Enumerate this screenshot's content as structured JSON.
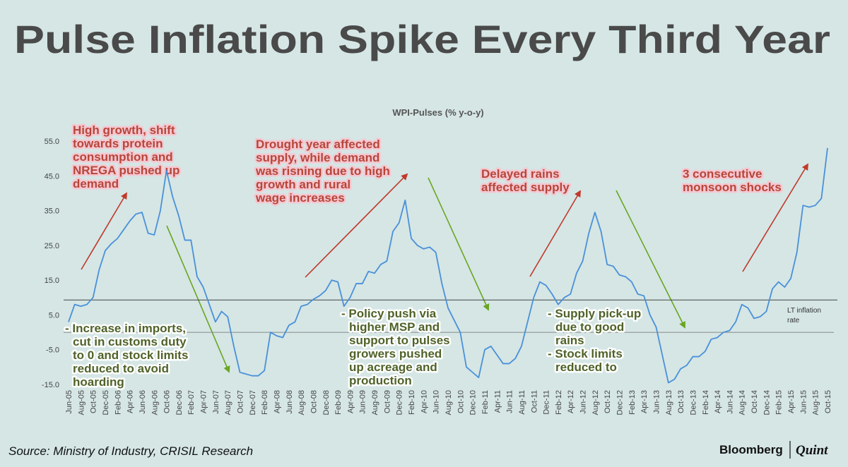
{
  "chart_data": {
    "type": "line",
    "title": "Pulse Inflation Spike Every Third Year",
    "subtitle": "WPI-Pulses (% y-o-y)",
    "categories": [
      "Jun-05",
      null,
      "Aug-05",
      null,
      "Oct-05",
      null,
      "Dec-05",
      null,
      "Feb-06",
      null,
      "Apr-06",
      null,
      "Jun-06",
      null,
      "Aug-06",
      null,
      "Oct-06",
      null,
      "Dec-06",
      null,
      "Feb-07",
      null,
      "Apr-07",
      null,
      "Jun-07",
      null,
      "Aug-07",
      null,
      "Oct-07",
      null,
      "Dec-07",
      null,
      "Feb-08",
      null,
      "Apr-08",
      null,
      "Jun-08",
      null,
      "Aug-08",
      null,
      "Oct-08",
      null,
      "Dec-08",
      null,
      "Feb-09",
      null,
      "Apr-09",
      null,
      "Jun-09",
      null,
      "Aug-09",
      null,
      "Oct-09",
      null,
      "Dec-09",
      null,
      "Feb-10",
      null,
      "Apr-10",
      null,
      "Jun-10",
      null,
      "Aug-10",
      null,
      "Oct-10",
      null,
      "Dec-10",
      null,
      "Feb-11",
      null,
      "Apr-11",
      null,
      "Jun-11",
      null,
      "Aug-11",
      null,
      "Oct-11",
      null,
      "Dec-11",
      null,
      "Feb-12",
      null,
      "Apr-12",
      null,
      "Jun-12",
      null,
      "Aug-12",
      null,
      "Oct-12",
      null,
      "Dec-12",
      null,
      "Feb-13",
      null,
      "Apr-13",
      null,
      "Jun-13",
      null,
      "Aug-13",
      null,
      "Oct-13",
      null,
      "Dec-13",
      null,
      "Feb-14",
      null,
      "Apr-14",
      null,
      "Jun-14",
      null,
      "Aug-14",
      null,
      "Oct-14",
      null,
      "Dec-14",
      null,
      "Feb-15",
      null,
      "Apr-15",
      null,
      "Jun-15",
      null,
      "Aug-15",
      null,
      "Oct-15"
    ],
    "values": [
      3,
      8,
      7.5,
      8,
      10,
      18,
      23.5,
      25.5,
      27,
      29.5,
      32,
      34,
      34.5,
      28.5,
      28,
      35,
      46.5,
      39,
      33.5,
      26.5,
      26.5,
      16,
      13,
      8,
      3,
      6,
      4.5,
      -4,
      -11.5,
      -12,
      -12.5,
      -12.5,
      -11,
      0,
      -1,
      -1.5,
      2,
      3,
      7.5,
      8,
      9.5,
      10.5,
      12,
      15,
      14.5,
      7.5,
      10,
      14,
      14,
      17.5,
      17,
      19.5,
      20.5,
      29,
      31.5,
      38,
      27,
      25,
      24,
      24.5,
      23,
      14,
      7,
      3.5,
      0,
      -10,
      -11.5,
      -13,
      -5,
      -4,
      -6.5,
      -9,
      -9,
      -7.5,
      -4,
      3,
      10,
      14.5,
      13.5,
      11,
      8,
      10,
      11,
      17,
      20.5,
      28.5,
      34.5,
      29,
      19.5,
      19,
      16.5,
      16,
      14.5,
      11,
      10.5,
      5,
      1.5,
      -6.5,
      -14.5,
      -13.5,
      -10.5,
      -9.5,
      -7,
      -7,
      -5.5,
      -2,
      -1.5,
      0,
      0.5,
      3,
      8,
      7,
      4,
      4.5,
      6,
      12.5,
      14.5,
      13,
      15.5,
      23,
      36.5,
      36,
      36.5,
      38.5,
      53
    ],
    "color": "#4a90d9",
    "ylim": [
      -15,
      55
    ],
    "yticks": [
      {
        "value": -15,
        "label": "-15.0"
      },
      {
        "value": -5,
        "label": "-5.0"
      },
      {
        "value": 5,
        "label": "5.0"
      },
      {
        "value": 15,
        "label": "15.0"
      },
      {
        "value": 25,
        "label": "25.0"
      },
      {
        "value": 35,
        "label": "35.0"
      },
      {
        "value": 45,
        "label": "45.0"
      },
      {
        "value": 55,
        "label": "55.0"
      }
    ],
    "reference_line": {
      "value": 9.3,
      "label": [
        "LT inflation",
        "rate"
      ]
    },
    "annotations": [
      {
        "lines": [
          "High growth, shift",
          "towards protein",
          "consumption and",
          "NREGA pushed up",
          "demand"
        ],
        "color": "#b5473a"
      },
      {
        "lines": [
          "Drought year affected",
          "supply, while demand",
          "was risning due to high",
          "growth and rural",
          "wage increases"
        ],
        "color": "#b5473a"
      },
      {
        "lines": [
          "Delayed rains",
          "affected supply"
        ],
        "color": "#b5473a"
      },
      {
        "lines": [
          "3 consecutive",
          "monsoon shocks"
        ],
        "color": "#b5473a"
      },
      {
        "lines": [
          "- Increase in imports,",
          "cut in customs duty",
          "to 0 and stock limits",
          "reduced to avoid",
          "hoarding"
        ],
        "color": "#4f6228"
      },
      {
        "lines": [
          "- Policy push via",
          "higher MSP and",
          "support to pulses",
          "growers pushed",
          "up acreage and",
          "production"
        ],
        "color": "#4f6228"
      },
      {
        "lines": [
          "- Supply pick-up",
          "due to good",
          "rains",
          "- Stock limits",
          "reduced to"
        ],
        "color": "#4f6228"
      }
    ],
    "source": "Source: Ministry of Industry, CRISIL Research",
    "brand": [
      "Bloomberg",
      "Quint"
    ]
  }
}
